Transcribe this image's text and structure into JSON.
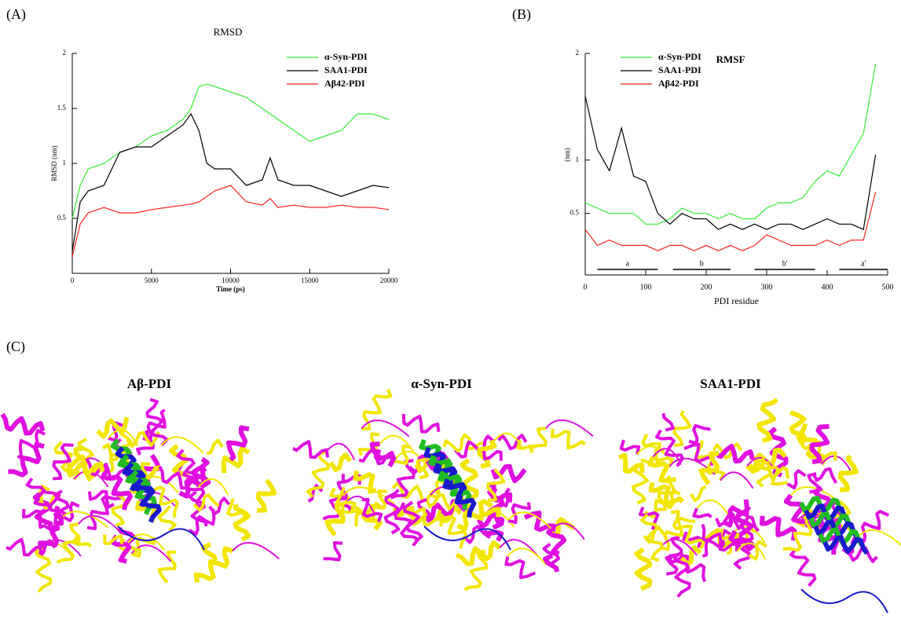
{
  "chart_data": [
    {
      "type": "line",
      "panel_label": "(A)",
      "title": "RMSD",
      "xlabel": "Time (ps)",
      "ylabel": "RMSD (nm)",
      "x": [
        0,
        500,
        1000,
        2000,
        3000,
        4000,
        5000,
        6000,
        7000,
        7500,
        8000,
        8500,
        9000,
        10000,
        11000,
        12000,
        12500,
        13000,
        14000,
        15000,
        16000,
        17000,
        18000,
        19000,
        20000
      ],
      "series": [
        {
          "name": "α-Syn-PDI",
          "color": "#33ee33",
          "values": [
            0.5,
            0.8,
            0.95,
            1.0,
            1.1,
            1.15,
            1.25,
            1.3,
            1.4,
            1.5,
            1.7,
            1.72,
            1.7,
            1.65,
            1.6,
            1.5,
            1.45,
            1.4,
            1.3,
            1.2,
            1.25,
            1.3,
            1.45,
            1.45,
            1.4
          ]
        },
        {
          "name": "SAA1-PDI",
          "color": "#000000",
          "values": [
            0.2,
            0.65,
            0.75,
            0.8,
            1.1,
            1.15,
            1.15,
            1.25,
            1.35,
            1.45,
            1.3,
            1.0,
            0.95,
            0.95,
            0.8,
            0.85,
            1.05,
            0.85,
            0.8,
            0.8,
            0.75,
            0.7,
            0.75,
            0.8,
            0.78
          ]
        },
        {
          "name": "Aβ42-PDI",
          "color": "#ff2222",
          "values": [
            0.15,
            0.45,
            0.55,
            0.6,
            0.55,
            0.55,
            0.58,
            0.6,
            0.62,
            0.63,
            0.65,
            0.7,
            0.75,
            0.8,
            0.65,
            0.62,
            0.68,
            0.6,
            0.62,
            0.6,
            0.6,
            0.62,
            0.6,
            0.6,
            0.58
          ]
        }
      ],
      "xlim": [
        0,
        20000
      ],
      "xticks": [
        0,
        5000,
        10000,
        15000,
        20000
      ],
      "ylim": [
        0,
        2
      ],
      "yticks": [
        0.5,
        1,
        1.5,
        2
      ],
      "legend": "upper right"
    },
    {
      "type": "line",
      "panel_label": "(B)",
      "title": "RMSF",
      "xlabel": "PDI residue",
      "ylabel": "(nm)",
      "x": [
        0,
        20,
        40,
        60,
        80,
        100,
        120,
        140,
        160,
        180,
        200,
        220,
        240,
        260,
        280,
        300,
        320,
        340,
        360,
        380,
        400,
        420,
        440,
        460,
        480
      ],
      "series": [
        {
          "name": "α-Syn-PDI",
          "color": "#33ee33",
          "values": [
            0.6,
            0.55,
            0.5,
            0.5,
            0.5,
            0.4,
            0.4,
            0.45,
            0.55,
            0.5,
            0.5,
            0.45,
            0.5,
            0.45,
            0.45,
            0.55,
            0.6,
            0.6,
            0.65,
            0.8,
            0.9,
            0.85,
            1.05,
            1.25,
            1.9
          ]
        },
        {
          "name": "SAA1-PDI",
          "color": "#000000",
          "values": [
            1.6,
            1.1,
            0.9,
            1.3,
            0.85,
            0.8,
            0.5,
            0.4,
            0.5,
            0.45,
            0.45,
            0.35,
            0.4,
            0.35,
            0.4,
            0.35,
            0.4,
            0.4,
            0.35,
            0.4,
            0.45,
            0.4,
            0.4,
            0.35,
            1.05
          ]
        },
        {
          "name": "Aβ42-PDI",
          "color": "#ff2222",
          "values": [
            0.35,
            0.2,
            0.25,
            0.2,
            0.2,
            0.2,
            0.15,
            0.2,
            0.2,
            0.15,
            0.2,
            0.15,
            0.2,
            0.15,
            0.2,
            0.3,
            0.25,
            0.2,
            0.2,
            0.2,
            0.25,
            0.2,
            0.25,
            0.25,
            0.7
          ]
        }
      ],
      "xlim": [
        0,
        500
      ],
      "xticks": [
        0,
        100,
        200,
        300,
        400,
        500
      ],
      "ylim": [
        0.1,
        2
      ],
      "yticks": [
        0.5,
        1,
        2
      ],
      "legend": "upper left",
      "domains": [
        {
          "label": "a",
          "start": 20,
          "end": 120
        },
        {
          "label": "b",
          "start": 145,
          "end": 240
        },
        {
          "label": "b'",
          "start": 280,
          "end": 380
        },
        {
          "label": "a'",
          "start": 420,
          "end": 500
        }
      ]
    }
  ],
  "structures": {
    "panel_label": "(C)",
    "titles": [
      "Aβ-PDI",
      "α-Syn-PDI",
      "SAA1-PDI"
    ]
  }
}
